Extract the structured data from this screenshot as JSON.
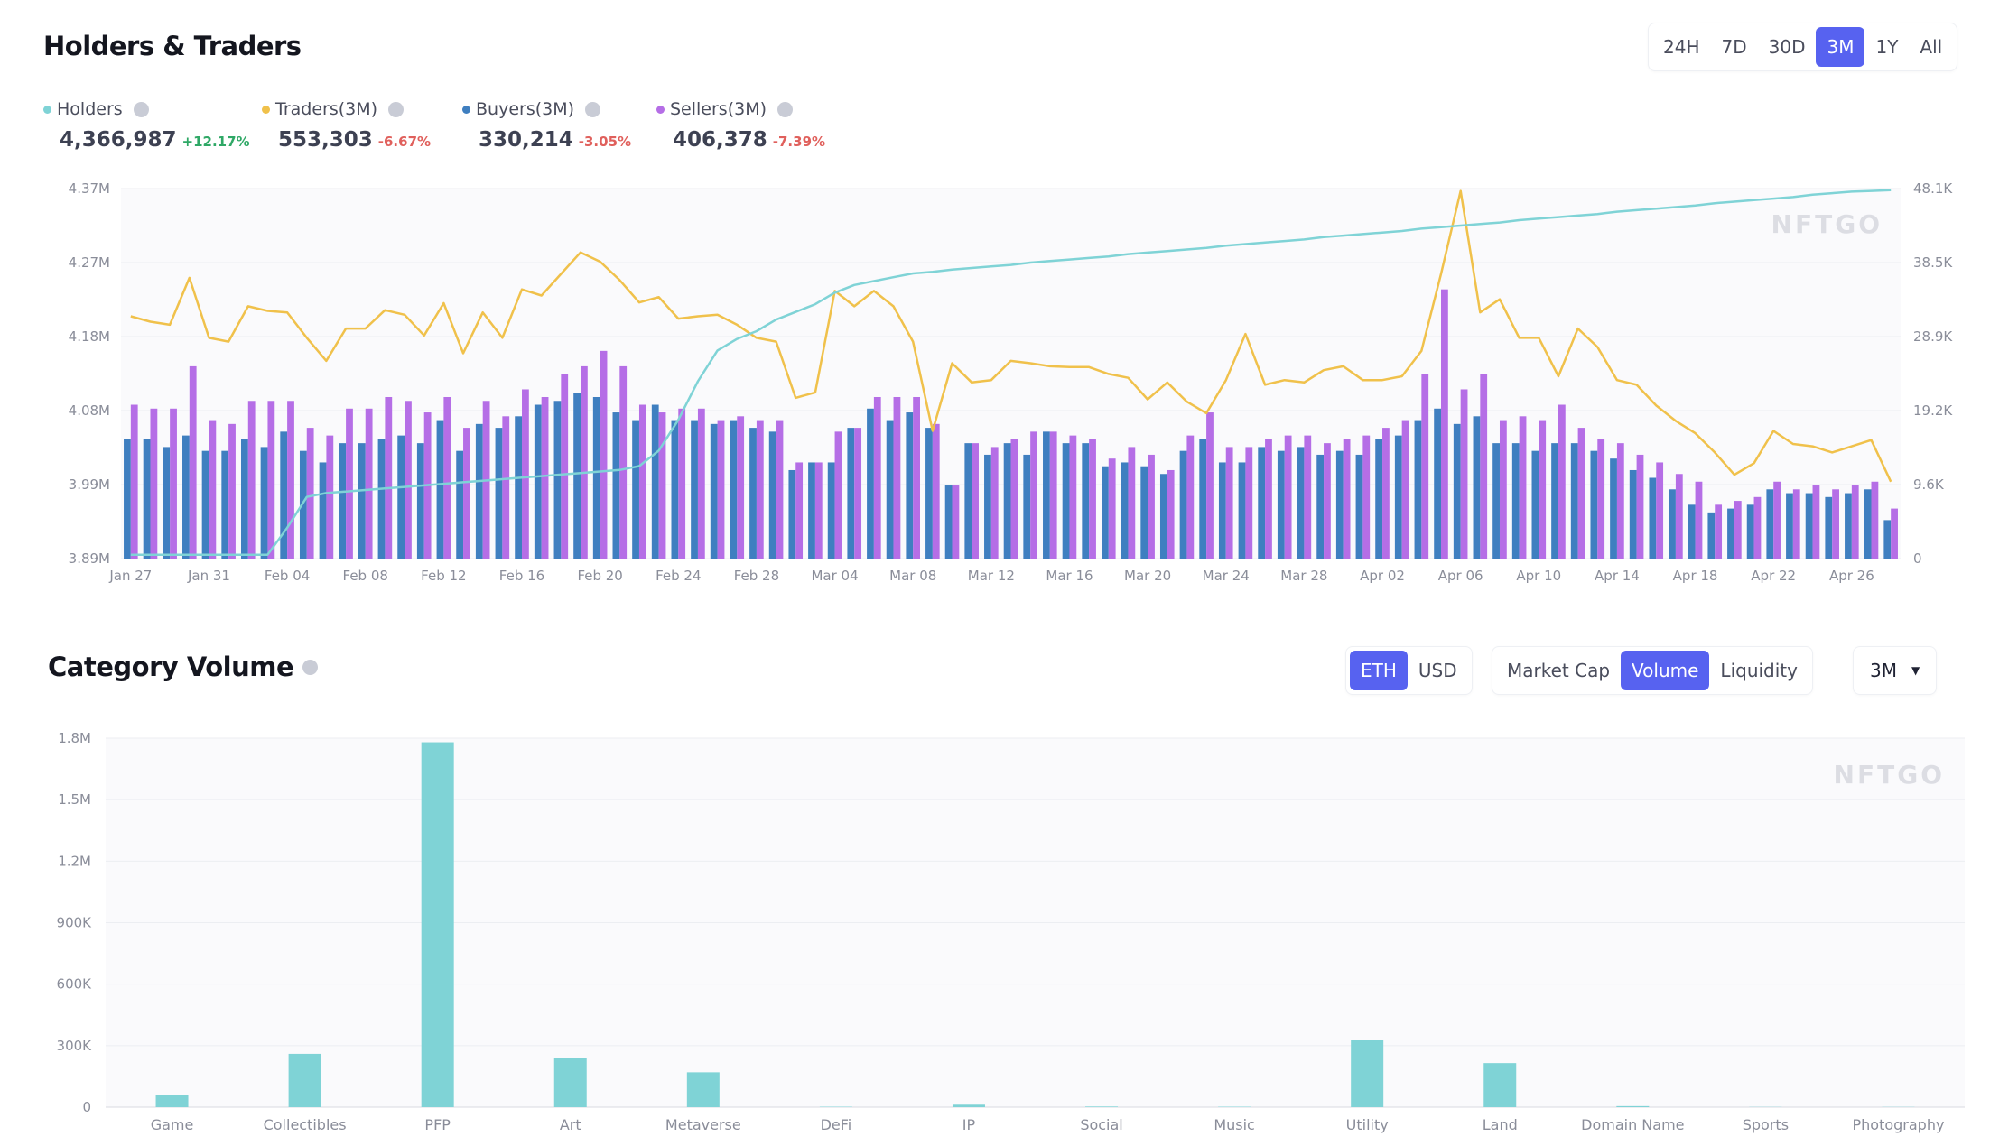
{
  "holders_traders": {
    "title": "Holders & Traders",
    "periods": [
      "24H",
      "7D",
      "30D",
      "3M",
      "1Y",
      "All"
    ],
    "active_period": "3M",
    "legend": [
      {
        "label": "Holders",
        "value": "4,366,987",
        "change": "+12.17%",
        "color": "#7fd3d6",
        "change_color": "#2fa866"
      },
      {
        "label": "Traders(3M)",
        "value": "553,303",
        "change": "-6.67%",
        "color": "#f0c14b",
        "change_color": "#e0605c"
      },
      {
        "label": "Buyers(3M)",
        "value": "330,214",
        "change": "-3.05%",
        "color": "#3f7fc0",
        "change_color": "#e0605c"
      },
      {
        "label": "Sellers(3M)",
        "value": "406,378",
        "change": "-7.39%",
        "color": "#b56ee6",
        "change_color": "#e0605c"
      }
    ],
    "watermark": "NFTGO"
  },
  "category_volume": {
    "title": "Category Volume",
    "currency_options": [
      "ETH",
      "USD"
    ],
    "active_currency": "ETH",
    "metric_options": [
      "Market Cap",
      "Volume",
      "Liquidity"
    ],
    "active_metric": "Volume",
    "range_select": "3M",
    "watermark": "NFTGO"
  },
  "chart_data": [
    {
      "type": "line",
      "title": "Holders & Traders",
      "x_tick_labels": [
        "Jan 27",
        "Jan 31",
        "Feb 04",
        "Feb 08",
        "Feb 12",
        "Feb 16",
        "Feb 20",
        "Feb 24",
        "Feb 28",
        "Mar 04",
        "Mar 08",
        "Mar 12",
        "Mar 16",
        "Mar 20",
        "Mar 24",
        "Mar 28",
        "Apr 02",
        "Apr 06",
        "Apr 10",
        "Apr 14",
        "Apr 18",
        "Apr 22",
        "Apr 26"
      ],
      "x_tick_every_days": 4,
      "left_axis": {
        "ticks": [
          "3.89M",
          "3.99M",
          "4.08M",
          "4.18M",
          "4.27M",
          "4.37M"
        ],
        "range": [
          3.89,
          4.37
        ],
        "unit": "M"
      },
      "right_axis": {
        "ticks": [
          "0",
          "9.6K",
          "19.2K",
          "28.9K",
          "38.5K",
          "48.1K"
        ],
        "range": [
          0,
          48.1
        ],
        "unit": "K"
      },
      "grid": true,
      "series": [
        {
          "name": "Holders",
          "type": "line",
          "axis": "left",
          "color": "#7fd3d6",
          "values": [
            3.895,
            3.895,
            3.895,
            3.895,
            3.895,
            3.895,
            3.895,
            3.895,
            3.93,
            3.97,
            3.975,
            3.977,
            3.979,
            3.981,
            3.983,
            3.985,
            3.987,
            3.989,
            3.991,
            3.993,
            3.995,
            3.997,
            3.999,
            4.001,
            4.003,
            4.005,
            4.01,
            4.03,
            4.07,
            4.12,
            4.16,
            4.175,
            4.185,
            4.2,
            4.21,
            4.22,
            4.235,
            4.245,
            4.25,
            4.255,
            4.26,
            4.262,
            4.265,
            4.267,
            4.269,
            4.271,
            4.274,
            4.276,
            4.278,
            4.28,
            4.282,
            4.285,
            4.287,
            4.289,
            4.291,
            4.293,
            4.296,
            4.298,
            4.3,
            4.302,
            4.304,
            4.307,
            4.309,
            4.311,
            4.313,
            4.315,
            4.318,
            4.32,
            4.322,
            4.324,
            4.326,
            4.329,
            4.331,
            4.333,
            4.335,
            4.337,
            4.34,
            4.342,
            4.344,
            4.346,
            4.348,
            4.351,
            4.353,
            4.355,
            4.357,
            4.359,
            4.362,
            4.364,
            4.366,
            4.367,
            4.368
          ]
        },
        {
          "name": "Traders",
          "type": "line",
          "axis": "right",
          "color": "#f0c14b",
          "values": [
            31.5,
            30.8,
            30.4,
            36.5,
            28.7,
            28.2,
            32.8,
            32.2,
            32.0,
            28.7,
            25.7,
            29.9,
            29.9,
            32.3,
            31.7,
            29.0,
            33.2,
            26.7,
            32.0,
            28.7,
            35.0,
            34.2,
            37.0,
            39.8,
            38.6,
            36.2,
            33.3,
            34.0,
            31.2,
            31.5,
            31.7,
            30.4,
            28.7,
            28.2,
            20.9,
            21.6,
            34.8,
            32.8,
            34.8,
            32.8,
            28.2,
            16.6,
            25.4,
            22.9,
            23.2,
            25.7,
            25.4,
            25.0,
            24.9,
            24.9,
            24.0,
            23.5,
            20.7,
            22.9,
            20.4,
            18.9,
            23.2,
            29.2,
            22.6,
            23.2,
            22.9,
            24.5,
            25.0,
            23.2,
            23.2,
            23.7,
            27.0,
            37.0,
            47.8,
            32.0,
            33.7,
            28.7,
            28.7,
            23.7,
            29.9,
            27.5,
            23.2,
            22.6,
            19.9,
            17.9,
            16.3,
            13.8,
            10.9,
            12.4,
            16.6,
            14.9,
            14.6,
            13.8,
            14.6,
            15.4,
            10.0
          ]
        },
        {
          "name": "Buyers",
          "type": "bar",
          "axis": "right",
          "color": "#3f7fc0",
          "values": [
            15.5,
            15.5,
            14.5,
            16,
            14,
            14,
            15.5,
            14.5,
            16.5,
            14,
            12.5,
            15,
            15,
            15.5,
            16,
            15,
            18,
            14,
            17.5,
            17,
            18.5,
            20,
            20.5,
            21.5,
            21,
            19,
            18,
            20,
            18,
            18,
            17.5,
            18,
            17,
            16.5,
            11.5,
            12.5,
            12.5,
            17,
            19.5,
            18,
            19,
            17,
            9.5,
            15,
            13.5,
            15,
            13.5,
            16.5,
            15,
            15,
            12,
            12.5,
            12,
            11,
            14,
            15.5,
            12.5,
            12.5,
            14.5,
            14,
            14.5,
            13.5,
            14,
            13.5,
            15.5,
            16,
            18,
            19.5,
            17.5,
            18.5,
            15,
            15,
            14,
            15,
            15,
            14,
            13,
            11.5,
            10.5,
            9,
            7,
            6,
            6.5,
            7,
            9,
            8.5,
            8.5,
            8,
            8.5,
            9,
            5
          ]
        },
        {
          "name": "Sellers",
          "type": "bar",
          "axis": "right",
          "color": "#b56ee6",
          "values": [
            20,
            19.5,
            19.5,
            25,
            18,
            17.5,
            20.5,
            20.5,
            20.5,
            17,
            16,
            19.5,
            19.5,
            21,
            20.5,
            19,
            21,
            17,
            20.5,
            18.5,
            22,
            21,
            24,
            25,
            27,
            25,
            20,
            19,
            19.5,
            19.5,
            18,
            18.5,
            18,
            18,
            12.5,
            12.5,
            16.5,
            17,
            21,
            21,
            21,
            17.5,
            9.5,
            15,
            14.5,
            15.5,
            16.5,
            16.5,
            16,
            15.5,
            13,
            14.5,
            13.5,
            11.5,
            16,
            19,
            14.5,
            14.5,
            15.5,
            16,
            16,
            15,
            15.5,
            16,
            17,
            18,
            24,
            35,
            22,
            24,
            18,
            18.5,
            18,
            20,
            17,
            15.5,
            15,
            13.5,
            12.5,
            11,
            10,
            7,
            7.5,
            8,
            10,
            9,
            9.5,
            9,
            9.5,
            10,
            6.5
          ]
        }
      ]
    },
    {
      "type": "bar",
      "title": "Category Volume",
      "categories": [
        "Game",
        "Collectibles",
        "PFP",
        "Art",
        "Metaverse",
        "DeFi",
        "IP",
        "Social",
        "Music",
        "Utility",
        "Land",
        "Domain Name",
        "Sports",
        "Photography"
      ],
      "values": [
        60000,
        260000,
        1780000,
        240000,
        170000,
        2000,
        12000,
        3000,
        2000,
        330000,
        215000,
        5000,
        1000,
        1000
      ],
      "y_ticks": [
        "0",
        "300K",
        "600K",
        "900K",
        "1.2M",
        "1.5M",
        "1.8M"
      ],
      "ylim": [
        0,
        1800000
      ],
      "color": "#7fd3d6",
      "grid": true
    }
  ]
}
